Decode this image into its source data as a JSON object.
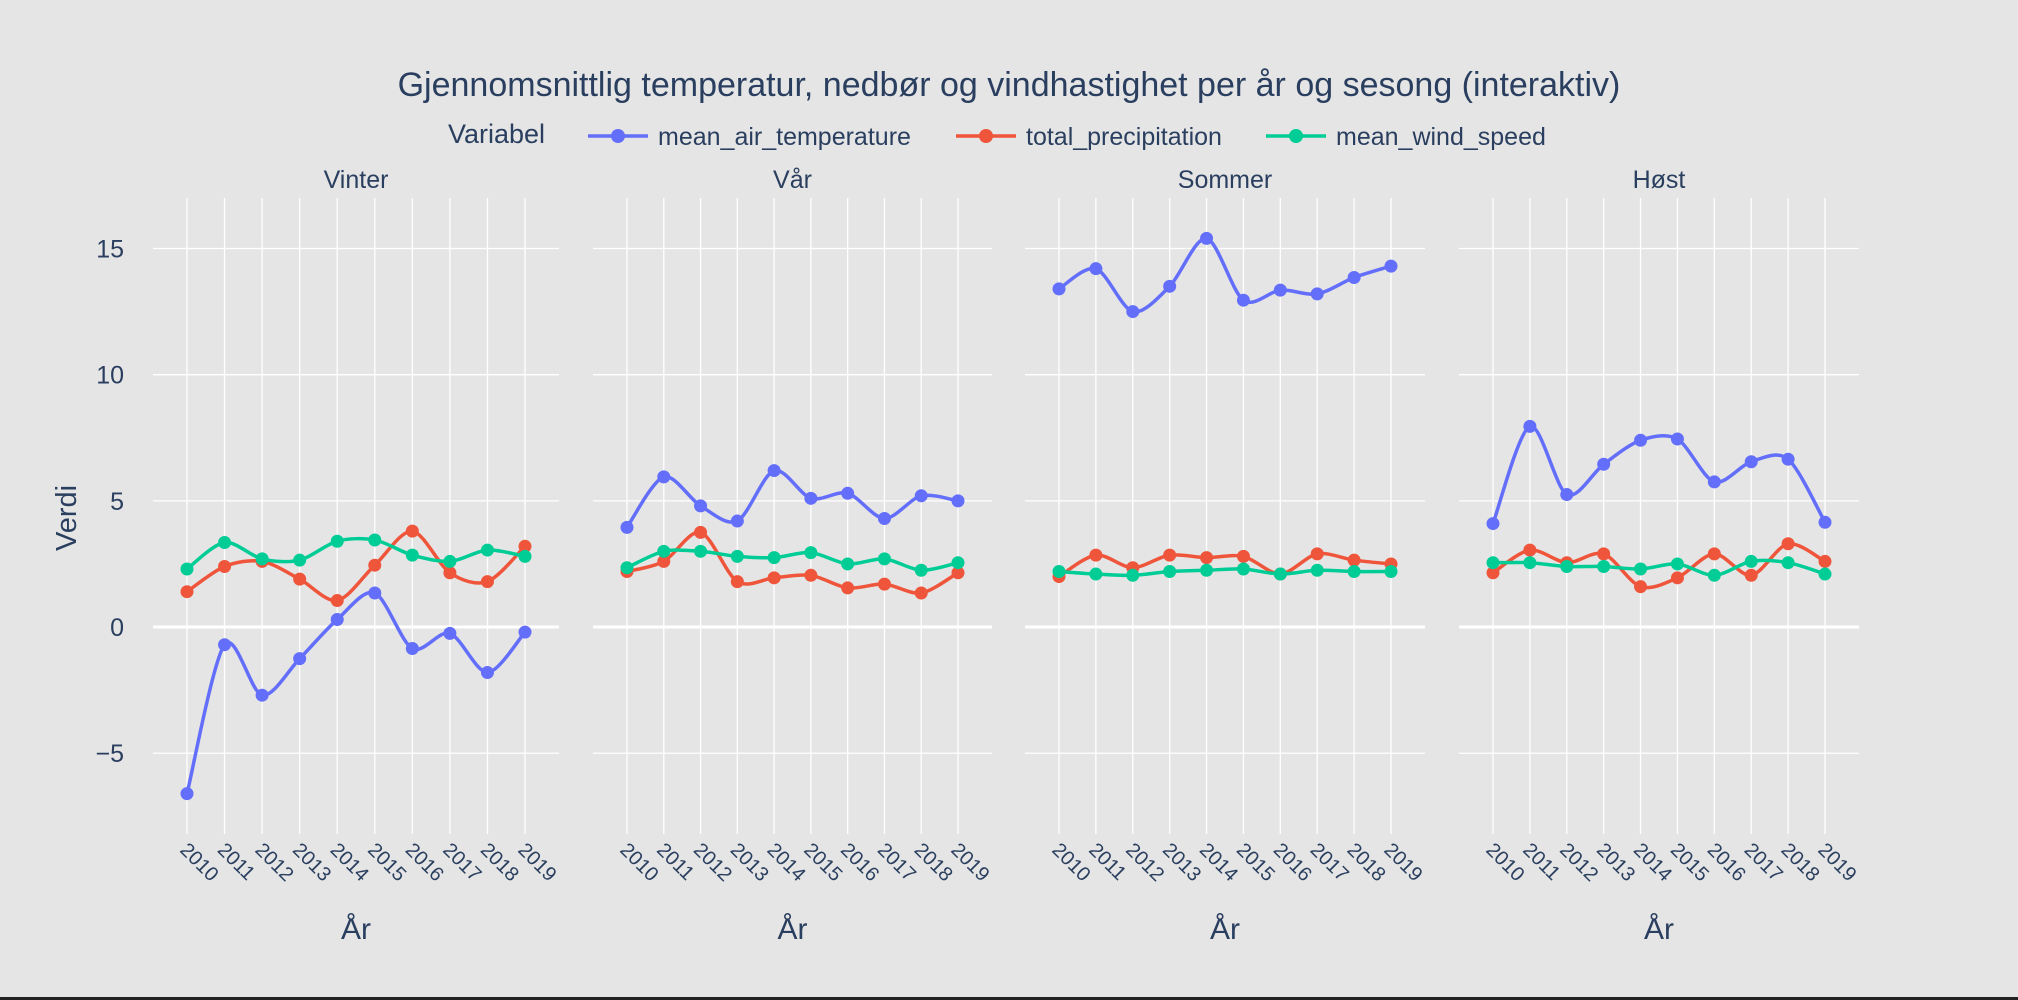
{
  "chart_data": {
    "type": "line",
    "title": "Gjennomsnittlig temperatur, nedbør og vindhastighet per år og sesong (interaktiv)",
    "legend_title": "Variabel",
    "legend_position": "top",
    "xlabel": "År",
    "ylabel": "Verdi",
    "ylim": [
      -8.2,
      17
    ],
    "yticks": [
      15,
      10,
      5,
      0,
      -5
    ],
    "ytick_labels": [
      "15",
      "10",
      "5",
      "0",
      "−5"
    ],
    "x": [
      "2010",
      "2011",
      "2012",
      "2013",
      "2014",
      "2015",
      "2016",
      "2017",
      "2018",
      "2019"
    ],
    "grid": true,
    "series_style": [
      {
        "name": "mean_air_temperature",
        "color": "#636efa"
      },
      {
        "name": "total_precipitation",
        "color": "#ef553b"
      },
      {
        "name": "mean_wind_speed",
        "color": "#00cc96"
      }
    ],
    "panels": [
      {
        "season": "Vinter",
        "series": [
          {
            "name": "mean_air_temperature",
            "values": [
              -6.6,
              -0.7,
              -2.7,
              -1.25,
              0.3,
              1.35,
              -0.85,
              -0.25,
              -1.8,
              -0.2
            ]
          },
          {
            "name": "total_precipitation",
            "values": [
              1.4,
              2.4,
              2.6,
              1.9,
              1.05,
              2.45,
              3.8,
              2.15,
              1.8,
              3.2
            ]
          },
          {
            "name": "mean_wind_speed",
            "values": [
              2.3,
              3.35,
              2.7,
              2.65,
              3.4,
              3.45,
              2.85,
              2.6,
              3.05,
              2.8
            ]
          }
        ]
      },
      {
        "season": "Vår",
        "series": [
          {
            "name": "mean_air_temperature",
            "values": [
              3.95,
              5.95,
              4.8,
              4.2,
              6.2,
              5.1,
              5.3,
              4.3,
              5.2,
              5.0
            ]
          },
          {
            "name": "total_precipitation",
            "values": [
              2.2,
              2.6,
              3.75,
              1.8,
              1.95,
              2.05,
              1.55,
              1.7,
              1.35,
              2.15
            ]
          },
          {
            "name": "mean_wind_speed",
            "values": [
              2.35,
              3.0,
              3.0,
              2.8,
              2.75,
              2.95,
              2.5,
              2.7,
              2.25,
              2.55
            ]
          }
        ]
      },
      {
        "season": "Sommer",
        "series": [
          {
            "name": "mean_air_temperature",
            "values": [
              13.4,
              14.2,
              12.5,
              13.5,
              15.4,
              12.95,
              13.35,
              13.2,
              13.85,
              14.3
            ]
          },
          {
            "name": "total_precipitation",
            "values": [
              2.0,
              2.85,
              2.35,
              2.85,
              2.75,
              2.8,
              2.1,
              2.9,
              2.65,
              2.5
            ]
          },
          {
            "name": "mean_wind_speed",
            "values": [
              2.2,
              2.1,
              2.05,
              2.2,
              2.25,
              2.3,
              2.1,
              2.25,
              2.2,
              2.2
            ]
          }
        ]
      },
      {
        "season": "Høst",
        "series": [
          {
            "name": "mean_air_temperature",
            "values": [
              4.1,
              7.95,
              5.25,
              6.45,
              7.4,
              7.45,
              5.75,
              6.55,
              6.65,
              4.15
            ]
          },
          {
            "name": "total_precipitation",
            "values": [
              2.15,
              3.05,
              2.55,
              2.9,
              1.6,
              1.95,
              2.9,
              2.05,
              3.3,
              2.6
            ]
          },
          {
            "name": "mean_wind_speed",
            "values": [
              2.55,
              2.55,
              2.4,
              2.4,
              2.3,
              2.5,
              2.05,
              2.6,
              2.55,
              2.1
            ]
          }
        ]
      }
    ]
  }
}
